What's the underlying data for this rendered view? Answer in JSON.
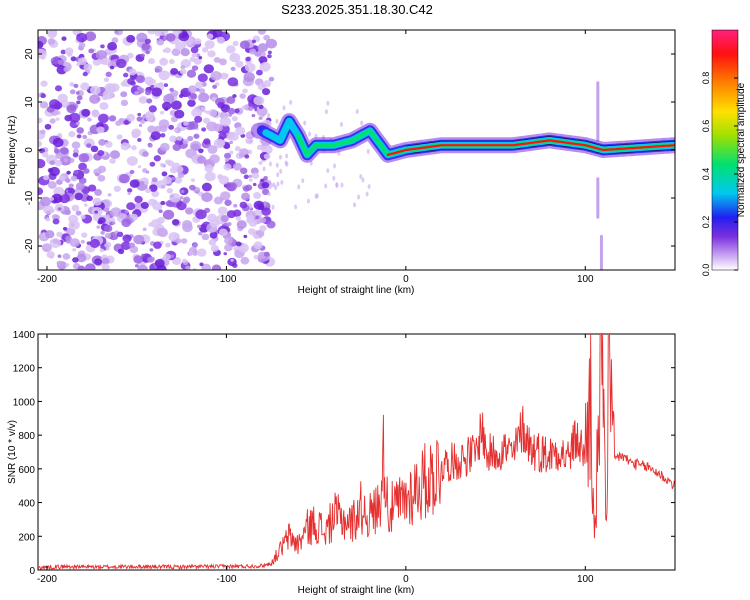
{
  "title": "S233.2025.351.18.30.C42",
  "colors": {
    "snr_line": "#e53030",
    "tick": "#000000",
    "frame": "#000000"
  },
  "chart_data": [
    {
      "type": "heatmap",
      "xlabel": "Height of straight line (km)",
      "ylabel": "Frequency (Hz)",
      "xlim": [
        -205,
        150
      ],
      "ylim": [
        -25,
        25
      ],
      "xticks": [
        -200,
        -100,
        0,
        100
      ],
      "yticks": [
        -20,
        -10,
        0,
        10,
        20
      ],
      "colorbar": {
        "label": "Normalized spectral amplitude",
        "range": [
          0,
          1
        ],
        "ticks": [
          0.0,
          0.2,
          0.4,
          0.6,
          0.8
        ]
      },
      "noise_region_x": [
        -205,
        -80
      ],
      "ridge": {
        "x": [
          -80,
          -70,
          -65,
          -60,
          -55,
          -50,
          -40,
          -30,
          -20,
          -10,
          0,
          20,
          40,
          60,
          80,
          100,
          110,
          150
        ],
        "freq": [
          4,
          2,
          6,
          3,
          -1,
          1,
          1,
          2,
          4,
          -1,
          0,
          1,
          1,
          1,
          2,
          1,
          0,
          1
        ]
      }
    },
    {
      "type": "line",
      "xlabel": "Height of straight line (km)",
      "ylabel": "SNR (10 * v/v)",
      "xlim": [
        -205,
        150
      ],
      "ylim": [
        0,
        1400
      ],
      "xticks": [
        -200,
        -100,
        0,
        100
      ],
      "yticks": [
        0,
        200,
        400,
        600,
        800,
        1000,
        1200,
        1400
      ],
      "series": [
        {
          "name": "SNR",
          "x": [
            -205,
            -190,
            -170,
            -150,
            -130,
            -110,
            -90,
            -80,
            -75,
            -70,
            -65,
            -60,
            -55,
            -50,
            -45,
            -40,
            -35,
            -30,
            -25,
            -20,
            -15,
            -12,
            -10,
            -5,
            0,
            5,
            10,
            15,
            20,
            25,
            30,
            35,
            40,
            42,
            45,
            50,
            55,
            60,
            65,
            70,
            75,
            80,
            85,
            90,
            95,
            100,
            103,
            105,
            108,
            110,
            112,
            113,
            115,
            120,
            125,
            130,
            135,
            140,
            145,
            150
          ],
          "y": [
            15,
            20,
            18,
            20,
            18,
            20,
            22,
            25,
            40,
            120,
            200,
            150,
            250,
            280,
            220,
            320,
            300,
            280,
            370,
            320,
            380,
            720,
            350,
            380,
            420,
            480,
            520,
            560,
            620,
            640,
            650,
            680,
            700,
            870,
            680,
            700,
            720,
            680,
            850,
            720,
            700,
            680,
            720,
            660,
            780,
            680,
            1050,
            120,
            980,
            1400,
            150,
            1350,
            650,
            680,
            640,
            620,
            610,
            580,
            540,
            500
          ]
        }
      ]
    }
  ]
}
